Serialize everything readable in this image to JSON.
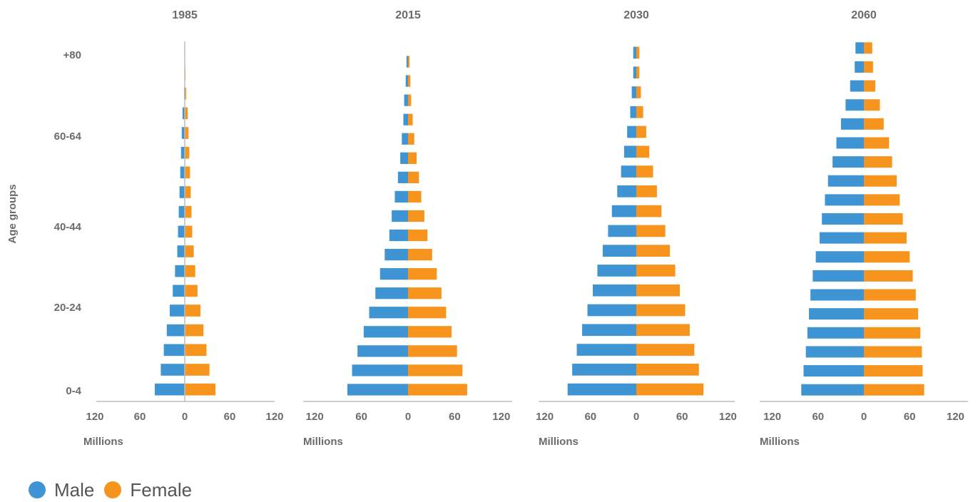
{
  "colors": {
    "male": "#3f95d3",
    "female": "#f7941d",
    "axis": "#bdbdbd"
  },
  "legend": {
    "male": "Male",
    "female": "Female"
  },
  "chart_data": {
    "type": "bar",
    "orientation": "horizontal",
    "ylabel": "Age groups",
    "y_tick_labels": [
      "+80",
      "60-64",
      "40-44",
      "20-24",
      "0-4"
    ],
    "x_tick_labels": [
      "120",
      "60",
      "0",
      "60",
      "120"
    ],
    "xlim": [
      -120,
      120
    ],
    "xlabel": "Millions",
    "panels": [
      {
        "title": "1985",
        "male": [
          40,
          32,
          28,
          24,
          20,
          16,
          13,
          10,
          9,
          8,
          7,
          6,
          5,
          4,
          3,
          1,
          0.5,
          0.3
        ],
        "female": [
          41,
          33,
          29,
          25,
          21,
          17,
          14,
          12,
          10,
          9,
          8,
          7,
          6,
          5,
          4,
          2,
          1,
          0.5
        ]
      },
      {
        "title": "2015",
        "male": [
          78,
          72,
          65,
          57,
          50,
          42,
          36,
          30,
          24,
          21,
          17,
          13,
          10,
          8,
          6,
          5,
          3,
          2
        ],
        "female": [
          76,
          70,
          63,
          56,
          49,
          43,
          37,
          31,
          25,
          21,
          17,
          14,
          11,
          8,
          6,
          4,
          3,
          2
        ]
      },
      {
        "title": "2030",
        "male": [
          90,
          84,
          78,
          71,
          64,
          57,
          51,
          44,
          37,
          32,
          25,
          20,
          16,
          12,
          8,
          6,
          4,
          4
        ],
        "female": [
          88,
          82,
          76,
          70,
          64,
          57,
          51,
          44,
          38,
          33,
          27,
          22,
          17,
          13,
          9,
          6,
          4,
          4
        ]
      },
      {
        "title": "2060",
        "male": [
          82,
          79,
          76,
          74,
          72,
          70,
          67,
          63,
          58,
          55,
          51,
          47,
          41,
          36,
          30,
          24,
          18,
          12,
          11
        ],
        "female": [
          79,
          77,
          76,
          74,
          71,
          68,
          64,
          60,
          56,
          51,
          47,
          43,
          37,
          33,
          26,
          21,
          15,
          12,
          11
        ]
      }
    ]
  }
}
